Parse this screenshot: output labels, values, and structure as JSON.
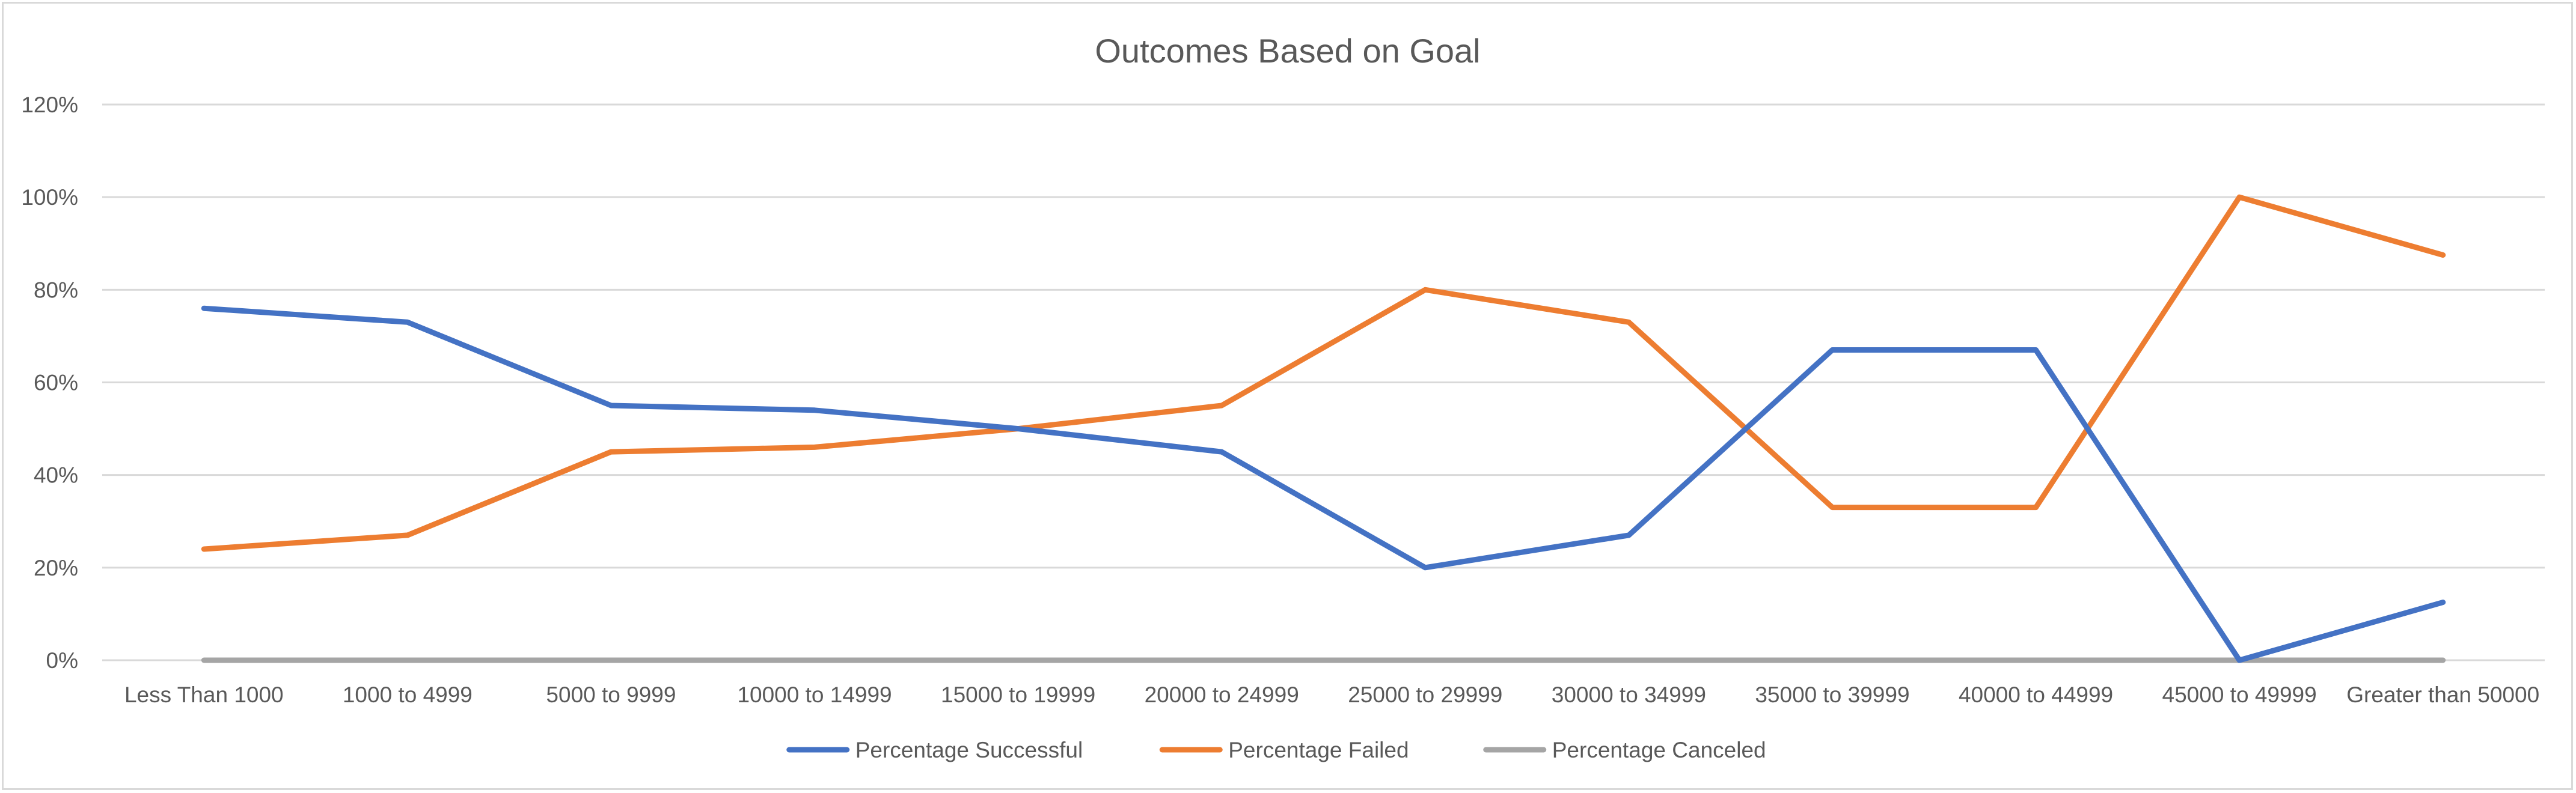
{
  "chart_data": {
    "type": "line",
    "title": "Outcomes Based on Goal",
    "xlabel": "",
    "ylabel": "",
    "categories": [
      "Less Than 1000",
      "1000 to 4999",
      "5000 to 9999",
      "10000 to 14999",
      "15000 to 19999",
      "20000 to 24999",
      "25000 to 29999",
      "30000 to 34999",
      "35000 to 39999",
      "40000 to 44999",
      "45000 to 49999",
      "Greater than 50000"
    ],
    "ylim": [
      0,
      1.2
    ],
    "yticks": [
      0,
      0.2,
      0.4,
      0.6,
      0.8,
      1.0,
      1.2
    ],
    "ytick_labels": [
      "0%",
      "20%",
      "40%",
      "60%",
      "80%",
      "100%",
      "120%"
    ],
    "grid": true,
    "legend_position": "bottom",
    "series": [
      {
        "name": "Percentage Successful",
        "color": "#4472c4",
        "values": [
          0.76,
          0.73,
          0.55,
          0.54,
          0.5,
          0.45,
          0.2,
          0.27,
          0.67,
          0.67,
          0.0,
          0.125
        ]
      },
      {
        "name": "Percentage Failed",
        "color": "#ed7d31",
        "values": [
          0.24,
          0.27,
          0.45,
          0.46,
          0.5,
          0.55,
          0.8,
          0.73,
          0.33,
          0.33,
          1.0,
          0.875
        ]
      },
      {
        "name": "Percentage Canceled",
        "color": "#a5a5a5",
        "values": [
          0,
          0,
          0,
          0,
          0,
          0,
          0,
          0,
          0,
          0,
          0,
          0
        ]
      }
    ]
  }
}
